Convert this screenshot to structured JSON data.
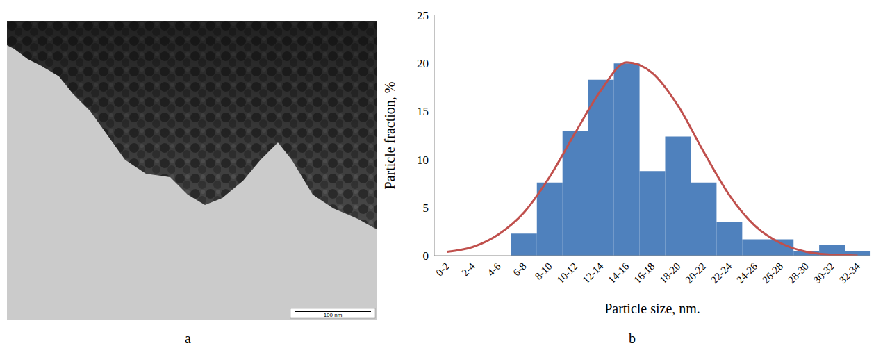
{
  "panel_labels": [
    "a",
    "b"
  ],
  "micrograph": {
    "scale_bar": "100 nm"
  },
  "chart_data": {
    "type": "bar",
    "x_label": "Particle size, nm.",
    "y_label": "Particle fraction, %",
    "categories": [
      "0-2",
      "2-4",
      "4-6",
      "6-8",
      "8-10",
      "10-12",
      "12-14",
      "14-16",
      "16-18",
      "18-20",
      "20-22",
      "22-24",
      "24-26",
      "26-28",
      "28-30",
      "30-32",
      "32-34"
    ],
    "series": [
      {
        "type": "bar",
        "color": "#4f81bd",
        "values": [
          0,
          0,
          0,
          2.3,
          7.6,
          13,
          18.3,
          20,
          8.8,
          12.4,
          7.6,
          3.5,
          1.7,
          1.7,
          0.5,
          1.1,
          0.5
        ]
      },
      {
        "type": "line",
        "color": "#c0504d",
        "values": [
          0.4,
          0.9,
          2.2,
          4.5,
          8.2,
          12.8,
          17.2,
          20.1,
          19.0,
          15.6,
          10.8,
          6.3,
          3.1,
          1.3,
          0.4,
          0.1,
          0.0
        ]
      }
    ],
    "ylim": [
      0,
      25
    ],
    "yticks": [
      0,
      5,
      10,
      15,
      20,
      25
    ],
    "grid": false
  }
}
